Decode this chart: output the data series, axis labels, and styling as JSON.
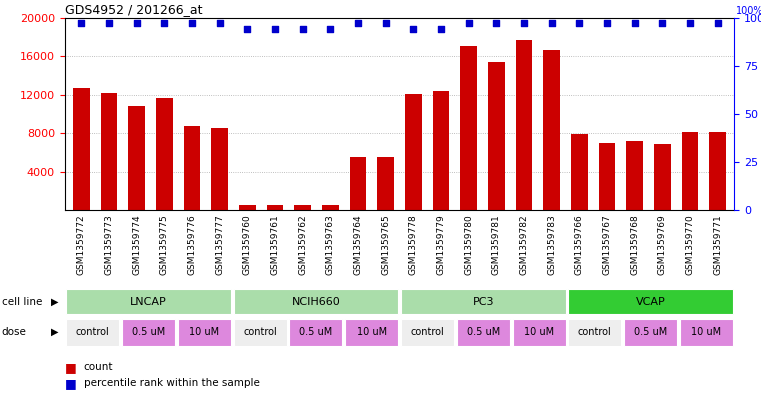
{
  "title": "GDS4952 / 201266_at",
  "samples": [
    "GSM1359772",
    "GSM1359773",
    "GSM1359774",
    "GSM1359775",
    "GSM1359776",
    "GSM1359777",
    "GSM1359760",
    "GSM1359761",
    "GSM1359762",
    "GSM1359763",
    "GSM1359764",
    "GSM1359765",
    "GSM1359778",
    "GSM1359779",
    "GSM1359780",
    "GSM1359781",
    "GSM1359782",
    "GSM1359783",
    "GSM1359766",
    "GSM1359767",
    "GSM1359768",
    "GSM1359769",
    "GSM1359770",
    "GSM1359771"
  ],
  "counts": [
    12700,
    12200,
    10800,
    11700,
    8800,
    8500,
    500,
    500,
    500,
    500,
    5500,
    5500,
    12100,
    12400,
    17100,
    15400,
    17700,
    16600,
    7900,
    7000,
    7200,
    6900,
    8100,
    8100
  ],
  "percentile_ranks": [
    97,
    97,
    97,
    97,
    97,
    97,
    94,
    94,
    94,
    94,
    97,
    97,
    94,
    94,
    97,
    97,
    97,
    97,
    97,
    97,
    97,
    97,
    97,
    97
  ],
  "cell_lines": [
    {
      "name": "LNCAP",
      "start": 0,
      "end": 6,
      "color": "#aaddaa"
    },
    {
      "name": "NCIH660",
      "start": 6,
      "end": 12,
      "color": "#aaddaa"
    },
    {
      "name": "PC3",
      "start": 12,
      "end": 18,
      "color": "#aaddaa"
    },
    {
      "name": "VCAP",
      "start": 18,
      "end": 24,
      "color": "#33cc33"
    }
  ],
  "dose_groups": [
    [
      [
        "control",
        0,
        2,
        "#eeeeee"
      ],
      [
        "0.5 uM",
        2,
        4,
        "#dd88dd"
      ],
      [
        "10 uM",
        4,
        6,
        "#dd88dd"
      ]
    ],
    [
      [
        "control",
        6,
        8,
        "#eeeeee"
      ],
      [
        "0.5 uM",
        8,
        10,
        "#dd88dd"
      ],
      [
        "10 uM",
        10,
        12,
        "#dd88dd"
      ]
    ],
    [
      [
        "control",
        12,
        14,
        "#eeeeee"
      ],
      [
        "0.5 uM",
        14,
        16,
        "#dd88dd"
      ],
      [
        "10 uM",
        16,
        18,
        "#dd88dd"
      ]
    ],
    [
      [
        "control",
        18,
        20,
        "#eeeeee"
      ],
      [
        "0.5 uM",
        20,
        22,
        "#dd88dd"
      ],
      [
        "10 uM",
        22,
        24,
        "#dd88dd"
      ]
    ]
  ],
  "bar_color": "#CC0000",
  "dot_color": "#0000CC",
  "ylim_left": [
    0,
    20000
  ],
  "ylim_right": [
    0,
    100
  ],
  "yticks_left": [
    4000,
    8000,
    12000,
    16000,
    20000
  ],
  "yticks_right": [
    0,
    25,
    50,
    75,
    100
  ],
  "bar_width": 0.6,
  "background_color": "#ffffff",
  "grid_color": "#aaaaaa",
  "label_row_bg": "#cccccc"
}
